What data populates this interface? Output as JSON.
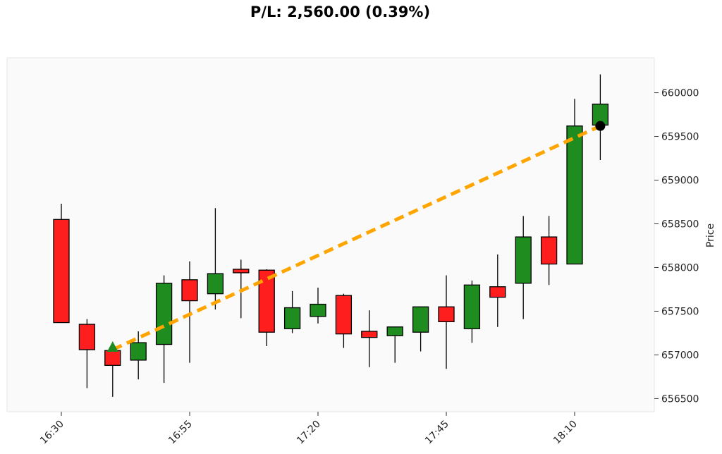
{
  "chart_data": {
    "type": "candlestick",
    "title": "P/L: 2,560.00 (0.39%)",
    "xlabel": "",
    "ylabel": "Price",
    "ylim": [
      656350,
      660400
    ],
    "grid": false,
    "interval_minutes": 5,
    "x_ticks": [
      "16:30",
      "16:55",
      "17:20",
      "17:45",
      "18:10"
    ],
    "y_ticks": [
      656500,
      657000,
      657500,
      658000,
      658500,
      659000,
      659500,
      660000
    ],
    "y_tick_labels": [
      "656500",
      "657000",
      "657500",
      "658000",
      "658500",
      "659000",
      "659500",
      "660000"
    ],
    "colors": {
      "up": "#1e8c1e",
      "down": "#ff1e1e",
      "trade_line": "#ffa500",
      "entry_marker": "#1e8c1e",
      "exit_marker": "#000000",
      "plot_bg": "#fafafa"
    },
    "candles": [
      {
        "time": "16:30",
        "open": 658550,
        "high": 658730,
        "low": 657370,
        "close": 657370
      },
      {
        "time": "16:35",
        "open": 657350,
        "high": 657410,
        "low": 656620,
        "close": 657060
      },
      {
        "time": "16:40",
        "open": 657050,
        "high": 657060,
        "low": 656520,
        "close": 656880
      },
      {
        "time": "16:45",
        "open": 656940,
        "high": 657270,
        "low": 656720,
        "close": 657140
      },
      {
        "time": "16:50",
        "open": 657120,
        "high": 657910,
        "low": 656680,
        "close": 657820
      },
      {
        "time": "16:55",
        "open": 657860,
        "high": 658070,
        "low": 656910,
        "close": 657620
      },
      {
        "time": "17:00",
        "open": 657700,
        "high": 658680,
        "low": 657520,
        "close": 657930
      },
      {
        "time": "17:05",
        "open": 657980,
        "high": 658090,
        "low": 657420,
        "close": 657940
      },
      {
        "time": "17:10",
        "open": 657970,
        "high": 657980,
        "low": 657100,
        "close": 657260
      },
      {
        "time": "17:15",
        "open": 657300,
        "high": 657730,
        "low": 657250,
        "close": 657540
      },
      {
        "time": "17:20",
        "open": 657440,
        "high": 657770,
        "low": 657360,
        "close": 657580
      },
      {
        "time": "17:25",
        "open": 657680,
        "high": 657700,
        "low": 657080,
        "close": 657240
      },
      {
        "time": "17:30",
        "open": 657270,
        "high": 657510,
        "low": 656860,
        "close": 657200
      },
      {
        "time": "17:35",
        "open": 657220,
        "high": 657320,
        "low": 656910,
        "close": 657320
      },
      {
        "time": "17:40",
        "open": 657260,
        "high": 657550,
        "low": 657040,
        "close": 657550
      },
      {
        "time": "17:45",
        "open": 657550,
        "high": 657910,
        "low": 656840,
        "close": 657380
      },
      {
        "time": "17:50",
        "open": 657300,
        "high": 657850,
        "low": 657140,
        "close": 657800
      },
      {
        "time": "17:55",
        "open": 657780,
        "high": 658150,
        "low": 657320,
        "close": 657660
      },
      {
        "time": "18:00",
        "open": 657820,
        "high": 658590,
        "low": 657410,
        "close": 658350
      },
      {
        "time": "18:05",
        "open": 658350,
        "high": 658590,
        "low": 657800,
        "close": 658040
      },
      {
        "time": "18:10",
        "open": 658040,
        "high": 659930,
        "low": 658040,
        "close": 659620
      },
      {
        "time": "18:15",
        "open": 659630,
        "high": 660210,
        "low": 659230,
        "close": 659870
      }
    ],
    "trade": {
      "entry": {
        "time": "16:40",
        "price": 657060
      },
      "exit": {
        "time": "18:15",
        "price": 659620
      }
    }
  }
}
